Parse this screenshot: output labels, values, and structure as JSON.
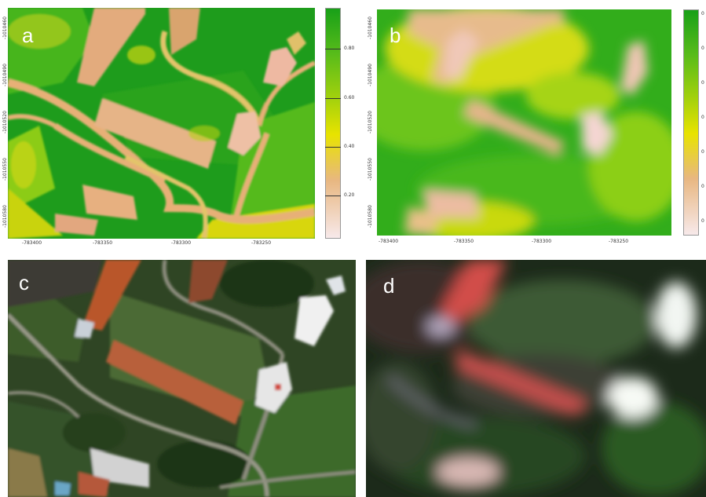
{
  "panels": {
    "a": {
      "label": "a"
    },
    "b": {
      "label": "b"
    },
    "c": {
      "label": "c"
    },
    "d": {
      "label": "d"
    }
  },
  "axis_a": {
    "x_ticks": [
      "-783400",
      "-783350",
      "-783300",
      "-783250"
    ],
    "y_ticks": [
      "-1010580",
      "-1010550",
      "-1010520",
      "-1010490",
      "-1010460"
    ]
  },
  "axis_b": {
    "x_ticks": [
      "-783400",
      "-783350",
      "-783300",
      "-783250"
    ],
    "y_ticks": [
      "-1010580",
      "-1010550",
      "-1010520",
      "-1010490",
      "-1010460"
    ]
  },
  "legend_a": {
    "ticks": [
      "0.80",
      "0.60",
      "0.40",
      "0.20"
    ],
    "colors": [
      "#1aa11a",
      "#8fd10c",
      "#e6e600",
      "#e8b07a",
      "#f7e6e6"
    ]
  },
  "legend_b": {
    "ticks": [
      "0",
      "0",
      "0",
      "0",
      "0",
      "0",
      "0"
    ]
  },
  "colors": {
    "green_dark": "#1e9c1c",
    "green_mid": "#6cc620",
    "yellow": "#e2df10",
    "salmon": "#e5ad80",
    "pink_light": "#f3d3cf",
    "roof_red": "#b9562b"
  }
}
